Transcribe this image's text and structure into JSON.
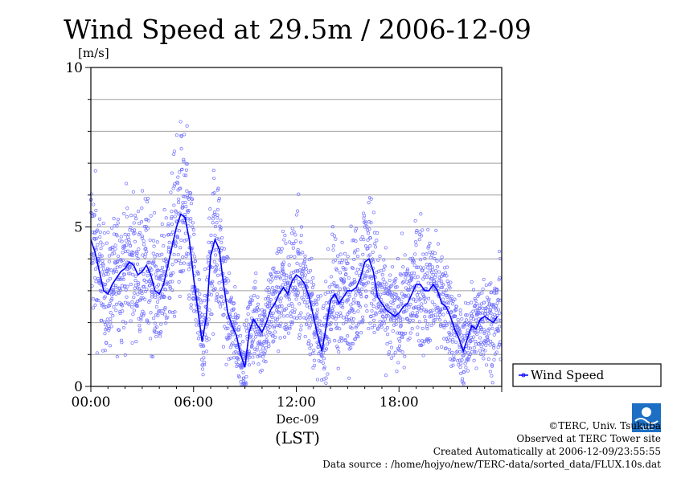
{
  "chart_data": {
    "type": "scatter",
    "title": "Wind Speed at 29.5m / 2006-12-09",
    "ylabel": "[m/s]",
    "xlabel": "(LST)",
    "date_label": "Dec-09",
    "ylim": [
      0,
      10
    ],
    "xlim": [
      0,
      24
    ],
    "y_ticks": [
      "0",
      "5",
      "10"
    ],
    "x_ticks": [
      "00:00",
      "06:00",
      "12:00",
      "18:00"
    ],
    "grid": true,
    "legend_position": "right",
    "series": [
      {
        "name": "Wind Speed",
        "color": "#0000ff",
        "scatter_color": "#7070ff",
        "mean_line": [
          [
            0.0,
            4.6
          ],
          [
            0.25,
            4.2
          ],
          [
            0.5,
            3.6
          ],
          [
            0.75,
            3.0
          ],
          [
            1.0,
            2.9
          ],
          [
            1.25,
            3.2
          ],
          [
            1.5,
            3.4
          ],
          [
            1.75,
            3.6
          ],
          [
            2.0,
            3.7
          ],
          [
            2.25,
            3.9
          ],
          [
            2.5,
            3.8
          ],
          [
            2.75,
            3.5
          ],
          [
            3.0,
            3.6
          ],
          [
            3.25,
            3.8
          ],
          [
            3.5,
            3.5
          ],
          [
            3.75,
            3.0
          ],
          [
            4.0,
            2.9
          ],
          [
            4.25,
            3.2
          ],
          [
            4.5,
            3.8
          ],
          [
            4.75,
            4.4
          ],
          [
            5.0,
            5.0
          ],
          [
            5.25,
            5.4
          ],
          [
            5.5,
            5.3
          ],
          [
            5.75,
            4.6
          ],
          [
            6.0,
            3.4
          ],
          [
            6.25,
            2.4
          ],
          [
            6.5,
            1.4
          ],
          [
            6.75,
            2.2
          ],
          [
            7.0,
            4.1
          ],
          [
            7.25,
            4.6
          ],
          [
            7.5,
            4.3
          ],
          [
            7.75,
            3.2
          ],
          [
            8.0,
            2.3
          ],
          [
            8.25,
            1.9
          ],
          [
            8.5,
            1.6
          ],
          [
            8.75,
            1.0
          ],
          [
            9.0,
            0.6
          ],
          [
            9.25,
            1.7
          ],
          [
            9.5,
            2.1
          ],
          [
            9.75,
            1.9
          ],
          [
            10.0,
            1.7
          ],
          [
            10.25,
            2.0
          ],
          [
            10.5,
            2.4
          ],
          [
            10.75,
            2.6
          ],
          [
            11.0,
            2.9
          ],
          [
            11.25,
            3.1
          ],
          [
            11.5,
            2.9
          ],
          [
            11.75,
            3.3
          ],
          [
            12.0,
            3.5
          ],
          [
            12.25,
            3.4
          ],
          [
            12.5,
            3.2
          ],
          [
            12.75,
            2.8
          ],
          [
            13.0,
            2.2
          ],
          [
            13.25,
            1.6
          ],
          [
            13.5,
            1.1
          ],
          [
            13.75,
            1.9
          ],
          [
            14.0,
            2.7
          ],
          [
            14.25,
            2.9
          ],
          [
            14.5,
            2.6
          ],
          [
            14.75,
            2.8
          ],
          [
            15.0,
            3.0
          ],
          [
            15.25,
            3.0
          ],
          [
            15.5,
            3.1
          ],
          [
            15.75,
            3.4
          ],
          [
            16.0,
            3.9
          ],
          [
            16.25,
            4.0
          ],
          [
            16.5,
            3.6
          ],
          [
            16.75,
            2.8
          ],
          [
            17.0,
            2.6
          ],
          [
            17.25,
            2.4
          ],
          [
            17.5,
            2.3
          ],
          [
            17.75,
            2.2
          ],
          [
            18.0,
            2.3
          ],
          [
            18.25,
            2.5
          ],
          [
            18.5,
            2.6
          ],
          [
            18.75,
            2.9
          ],
          [
            19.0,
            3.2
          ],
          [
            19.25,
            3.2
          ],
          [
            19.5,
            3.0
          ],
          [
            19.75,
            3.0
          ],
          [
            20.0,
            3.2
          ],
          [
            20.25,
            3.0
          ],
          [
            20.5,
            2.6
          ],
          [
            20.75,
            2.5
          ],
          [
            21.0,
            2.2
          ],
          [
            21.25,
            1.8
          ],
          [
            21.5,
            1.5
          ],
          [
            21.75,
            1.1
          ],
          [
            22.0,
            1.5
          ],
          [
            22.25,
            1.9
          ],
          [
            22.5,
            1.8
          ],
          [
            22.75,
            2.1
          ],
          [
            23.0,
            2.2
          ],
          [
            23.25,
            2.1
          ],
          [
            23.5,
            2.0
          ],
          [
            23.75,
            2.2
          ]
        ]
      }
    ]
  },
  "credits": {
    "copyright": "©TERC, Univ. Tsukuba",
    "observed": "Observed at TERC Tower site",
    "created": "Created Automatically at 2006-12-09/23:55:55",
    "source": "Data source : /home/hojyo/new/TERC-data/sorted_data/FLUX.10s.dat"
  },
  "logo": {
    "text": "TERC",
    "color": "#1d6fc4"
  }
}
